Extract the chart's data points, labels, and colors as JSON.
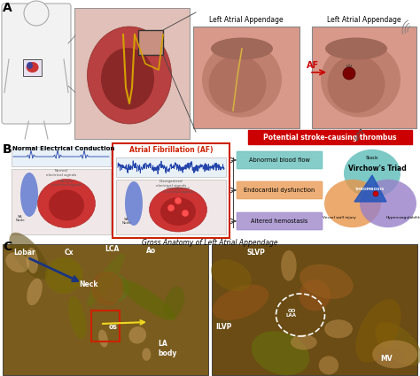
{
  "bg_color": "#ffffff",
  "panel_A_label": "A",
  "panel_B_label": "B",
  "panel_C_label": "C",
  "label_LAA1": "Left Atrial Appendage",
  "label_LAA2": "Left Atrial Appendage",
  "label_AF": "AF",
  "stroke_box_text": "Potential stroke-causing thrombus",
  "label_NEC": "Normal Electrical Conduction",
  "label_AF2": "Atrial Fibrillation (AF)",
  "flow_labels": [
    "Abnormal blood flow",
    "Endocardial dysfunction",
    "Altered hemostasis"
  ],
  "flow_colors": [
    "#5dbcb8",
    "#e8954a",
    "#9880c8"
  ],
  "virchow_title": "Virchow's Triad",
  "virchow_circles_labels": [
    "Stasis",
    "Vessel wall injury",
    "Hypercoagulability"
  ],
  "virchow_colors": [
    "#5dbcb8",
    "#e8954a",
    "#9880c8"
  ],
  "virchow_center": "THROMBOSIS",
  "gross_anatomy_title": "Gross Anatomy of Left Atrial Appendage",
  "arrow_color_blue": "#1a3580",
  "arrow_color_red": "#cc2200",
  "arrow_color_yellow": "#f0d820",
  "anatomy_bg_left": "#7a5c1e",
  "anatomy_bg_right": "#6a4c14",
  "laa_bg": "#d8998a",
  "laa_inner": "#c07868",
  "heart_bg": "#c05050",
  "body_bg": "#f0f0f0",
  "ecg_bg": "#e8f0f8",
  "label_fontsize": 7,
  "panel_label_fontsize": 10
}
